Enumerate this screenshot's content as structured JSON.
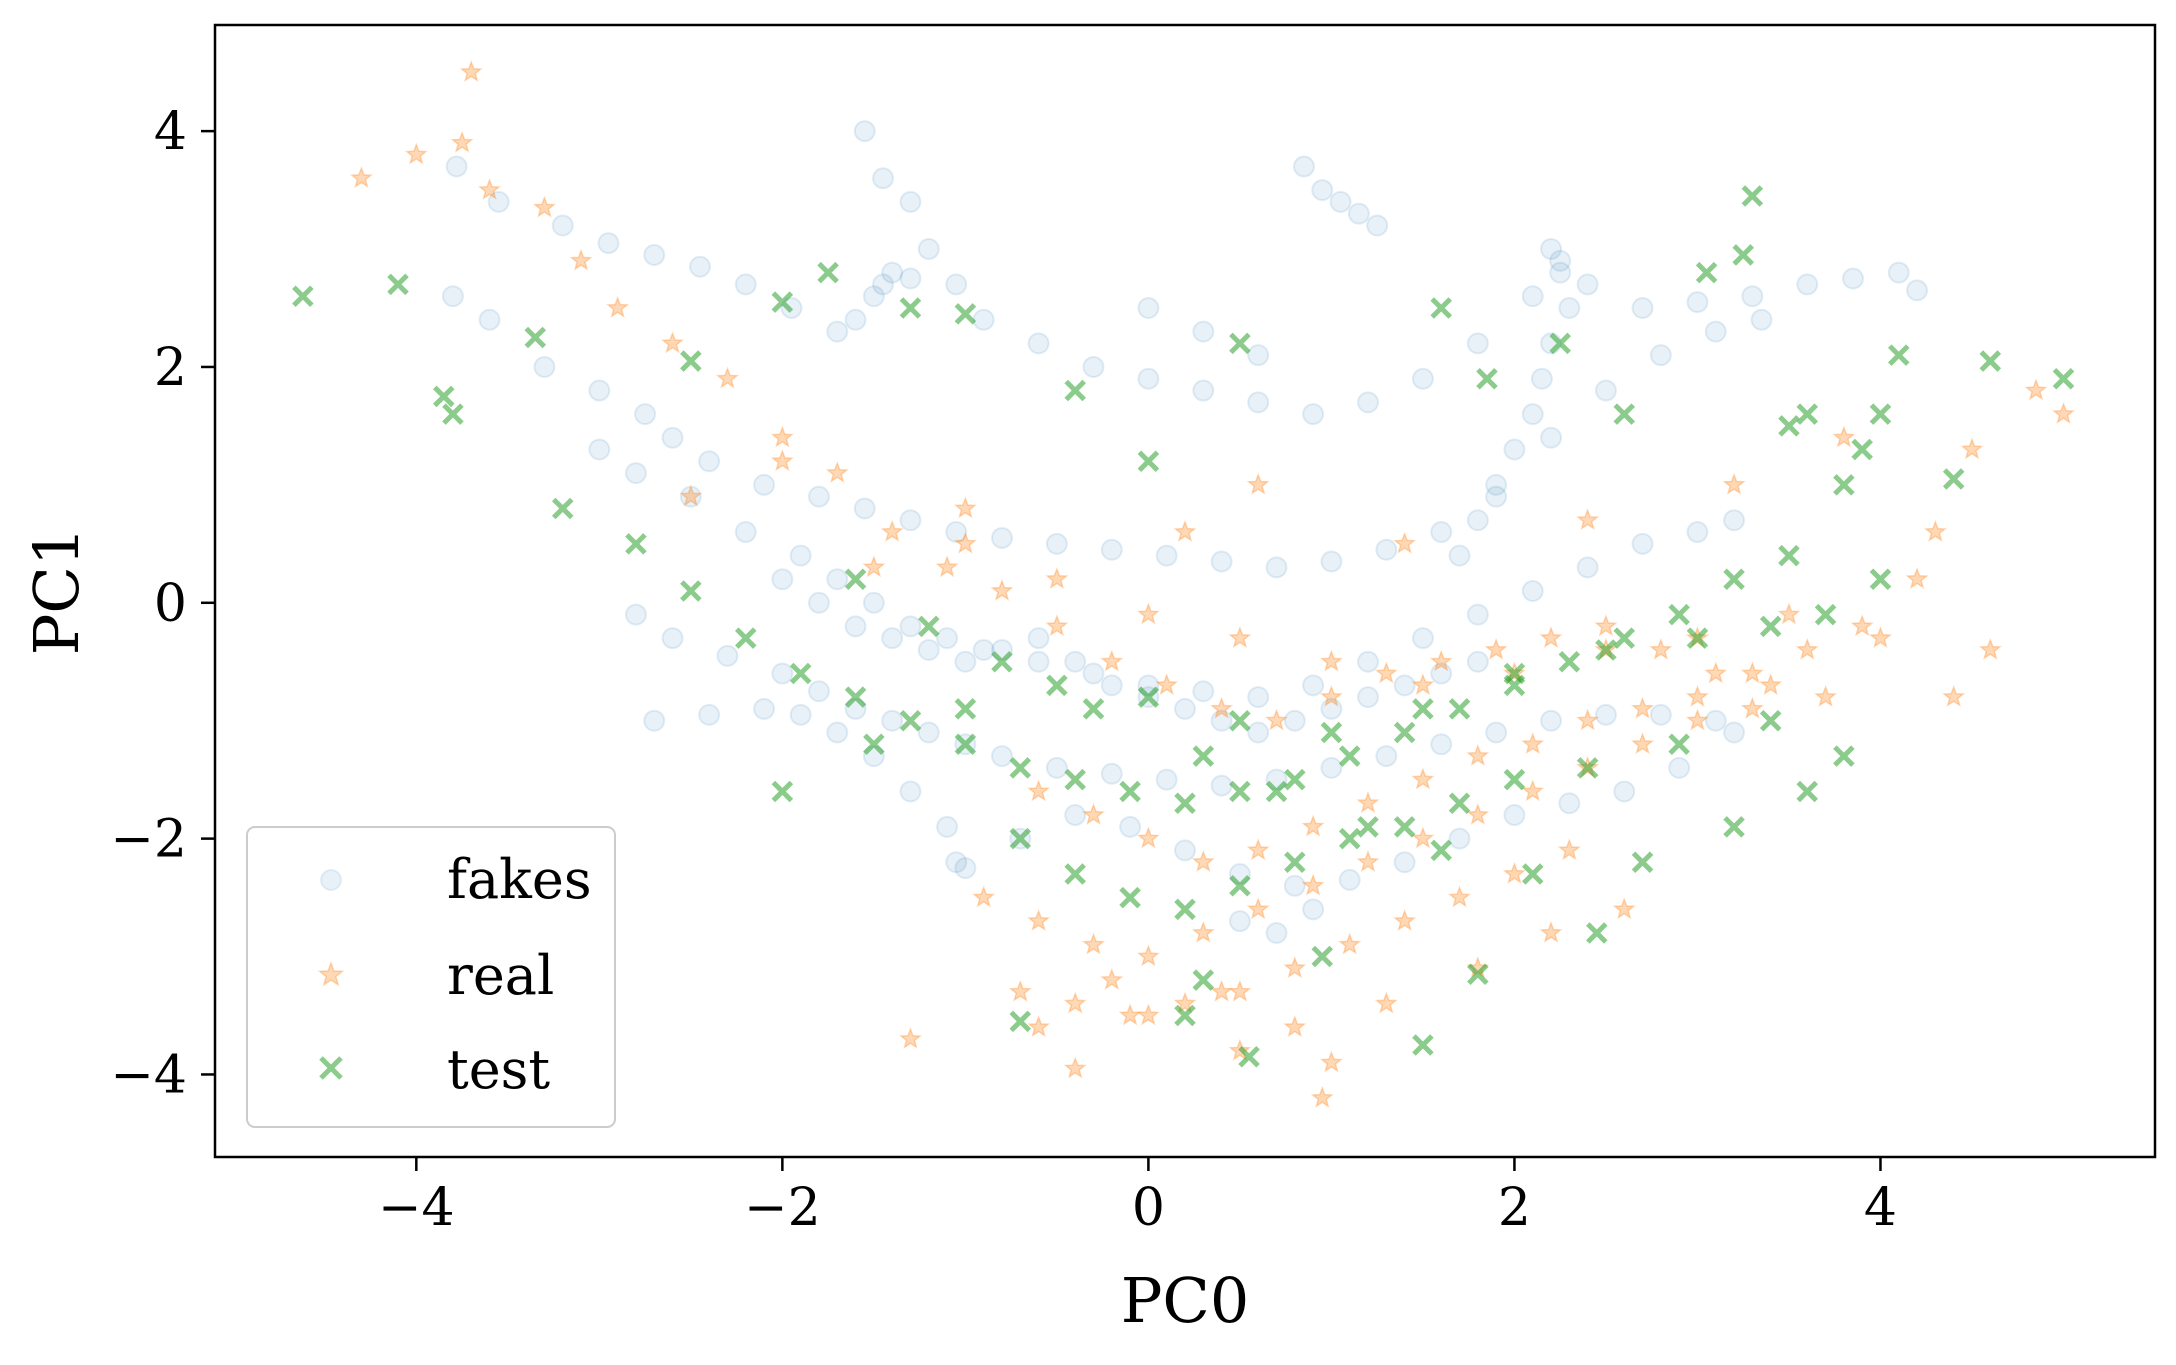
{
  "chart_data": {
    "type": "scatter",
    "title": "",
    "xlabel": "PC0",
    "ylabel": "PC1",
    "xlim": [
      -5.1,
      5.5
    ],
    "ylim": [
      -4.7,
      4.9
    ],
    "x_ticks": [
      -4,
      -2,
      0,
      2,
      4
    ],
    "y_ticks": [
      -4,
      -2,
      0,
      2,
      4
    ],
    "x_tick_labels": [
      "−4",
      "−2",
      "0",
      "2",
      "4"
    ],
    "y_tick_labels": [
      "−4",
      "−2",
      "0",
      "2",
      "4"
    ],
    "grid": false,
    "legend": {
      "position": "lower-left",
      "entries": [
        "fakes",
        "real",
        "test"
      ]
    },
    "colors": {
      "fakes": "#1f77b4",
      "real": "#ff7f0e",
      "test": "#2ca02c"
    },
    "series": [
      {
        "name": "fakes",
        "marker": "circle",
        "x": [
          -3.78,
          -3.55,
          -3.2,
          -2.95,
          -2.7,
          -2.45,
          -2.2,
          -1.95,
          -1.7,
          -1.55,
          -1.45,
          -1.3,
          -1.2,
          -1.05,
          -0.9,
          -0.6,
          -0.3,
          0.0,
          0.3,
          0.6,
          0.9,
          1.2,
          1.5,
          1.8,
          2.1,
          2.25,
          2.4,
          2.7,
          3.0,
          3.3,
          3.6,
          3.85,
          4.1,
          4.2,
          -3.8,
          -3.6,
          -3.3,
          -3.0,
          -2.75,
          -2.6,
          -2.4,
          -2.1,
          -1.8,
          -1.55,
          -1.3,
          -1.05,
          -0.8,
          -0.5,
          -0.2,
          0.1,
          0.4,
          0.7,
          1.0,
          1.3,
          1.6,
          1.9,
          2.2,
          2.5,
          2.8,
          3.1,
          3.35,
          -3.0,
          -2.8,
          -2.5,
          -2.2,
          -1.9,
          -1.7,
          -1.5,
          -1.3,
          -1.1,
          -0.9,
          -0.6,
          -0.3,
          0.0,
          0.3,
          0.6,
          0.9,
          1.2,
          1.5,
          1.8,
          2.1,
          2.4,
          2.7,
          3.0,
          3.2,
          -2.8,
          -2.6,
          -2.3,
          -2.0,
          -1.8,
          -1.6,
          -1.4,
          -1.2,
          -1.0,
          -0.8,
          -0.5,
          -0.2,
          0.1,
          0.4,
          0.7,
          1.0,
          1.3,
          1.6,
          1.9,
          2.2,
          2.5,
          2.8,
          3.1,
          -2.7,
          -2.4,
          -2.1,
          -1.9,
          -1.7,
          -1.5,
          -1.3,
          -1.1,
          -1.05,
          -1.0,
          -0.7,
          -0.4,
          -0.1,
          0.2,
          0.5,
          0.8,
          1.1,
          1.4,
          1.7,
          2.0,
          2.3,
          2.6,
          2.9,
          3.2,
          -1.6,
          -1.5,
          -1.45,
          -1.4,
          -1.3,
          0.85,
          0.95,
          1.05,
          1.15,
          1.25,
          0.0,
          0.3,
          0.6,
          2.2,
          2.25,
          2.3,
          2.2,
          2.15,
          2.1,
          2.0,
          1.9,
          1.8,
          1.7,
          -2.0,
          -1.8,
          -1.6,
          -1.4,
          -1.2,
          -1.0,
          -0.8,
          -0.6,
          -0.4,
          -0.2,
          0.0,
          0.2,
          0.4,
          0.6,
          0.8,
          1.0,
          1.2,
          1.4,
          1.6,
          1.8,
          0.5,
          0.7,
          0.9
        ],
        "y": [
          3.7,
          3.4,
          3.2,
          3.05,
          2.95,
          2.85,
          2.7,
          2.5,
          2.3,
          4.0,
          3.6,
          3.4,
          3.0,
          2.7,
          2.4,
          2.2,
          2.0,
          1.9,
          1.8,
          1.7,
          1.6,
          1.7,
          1.9,
          2.2,
          2.6,
          2.9,
          2.7,
          2.5,
          2.55,
          2.6,
          2.7,
          2.75,
          2.8,
          2.65,
          2.6,
          2.4,
          2.0,
          1.8,
          1.6,
          1.4,
          1.2,
          1.0,
          0.9,
          0.8,
          0.7,
          0.6,
          0.55,
          0.5,
          0.45,
          0.4,
          0.35,
          0.3,
          0.35,
          0.45,
          0.6,
          0.9,
          1.4,
          1.8,
          2.1,
          2.3,
          2.4,
          1.3,
          1.1,
          0.9,
          0.6,
          0.4,
          0.2,
          0.0,
          -0.2,
          -0.3,
          -0.4,
          -0.5,
          -0.6,
          -0.7,
          -0.75,
          -0.8,
          -0.7,
          -0.5,
          -0.3,
          -0.1,
          0.1,
          0.3,
          0.5,
          0.6,
          0.7,
          -0.1,
          -0.3,
          -0.45,
          -0.6,
          -0.75,
          -0.9,
          -1.0,
          -1.1,
          -1.2,
          -1.3,
          -1.4,
          -1.45,
          -1.5,
          -1.55,
          -1.5,
          -1.4,
          -1.3,
          -1.2,
          -1.1,
          -1.0,
          -0.95,
          -0.95,
          -1.0,
          -1.0,
          -0.95,
          -0.9,
          -0.95,
          -1.1,
          -1.3,
          -1.6,
          -1.9,
          -2.2,
          -2.25,
          -2.0,
          -1.8,
          -1.9,
          -2.1,
          -2.3,
          -2.4,
          -2.35,
          -2.2,
          -2.0,
          -1.8,
          -1.7,
          -1.6,
          -1.4,
          -1.1,
          2.4,
          2.6,
          2.7,
          2.8,
          2.75,
          3.7,
          3.5,
          3.4,
          3.3,
          3.2,
          2.5,
          2.3,
          2.1,
          3.0,
          2.8,
          2.5,
          2.2,
          1.9,
          1.6,
          1.3,
          1.0,
          0.7,
          0.4,
          0.2,
          0.0,
          -0.2,
          -0.3,
          -0.4,
          -0.5,
          -0.4,
          -0.3,
          -0.5,
          -0.7,
          -0.8,
          -0.9,
          -1.0,
          -1.1,
          -1.0,
          -0.9,
          -0.8,
          -0.7,
          -0.6,
          -0.5,
          -2.7,
          -2.8,
          -2.6
        ]
      },
      {
        "name": "real",
        "marker": "star",
        "x": [
          -3.7,
          -4.3,
          -4.0,
          -3.75,
          -3.6,
          -3.3,
          -3.1,
          -2.9,
          -2.6,
          -2.3,
          -2.0,
          -1.7,
          -1.4,
          -1.1,
          -0.8,
          -0.5,
          -0.2,
          0.1,
          0.4,
          0.7,
          1.0,
          1.3,
          1.6,
          1.9,
          2.2,
          2.5,
          2.8,
          3.1,
          3.4,
          3.7,
          4.0,
          4.3,
          4.5,
          5.0,
          4.85,
          -0.6,
          -0.3,
          0.0,
          0.3,
          0.6,
          0.9,
          1.2,
          1.5,
          1.8,
          2.1,
          2.4,
          2.7,
          3.0,
          3.3,
          3.6,
          3.9,
          4.2,
          -0.9,
          -0.6,
          -0.3,
          0.0,
          0.3,
          0.6,
          0.9,
          1.2,
          1.5,
          1.8,
          2.1,
          2.4,
          2.7,
          3.0,
          3.3,
          -0.7,
          -0.4,
          -0.1,
          0.2,
          0.5,
          0.8,
          1.1,
          1.4,
          1.7,
          2.0,
          2.3,
          -1.3,
          -0.6,
          -0.4,
          0.0,
          0.5,
          0.95,
          1.0,
          -0.2,
          0.4,
          0.8,
          1.3,
          1.8,
          2.2,
          2.6,
          -1.5,
          -1.0,
          -0.5,
          0.0,
          0.5,
          1.0,
          1.5,
          2.0,
          2.5,
          3.0,
          3.5,
          -2.5,
          -2.0,
          -1.0,
          0.2,
          0.6,
          1.4,
          2.4,
          3.2,
          3.8,
          4.4,
          4.6
        ],
        "y": [
          4.5,
          3.6,
          3.8,
          3.9,
          3.5,
          3.35,
          2.9,
          2.5,
          2.2,
          1.9,
          1.4,
          1.1,
          0.6,
          0.3,
          0.1,
          -0.2,
          -0.5,
          -0.7,
          -0.9,
          -1.0,
          -0.8,
          -0.6,
          -0.5,
          -0.4,
          -0.3,
          -0.2,
          -0.4,
          -0.6,
          -0.7,
          -0.8,
          -0.3,
          0.6,
          1.3,
          1.6,
          1.8,
          -1.6,
          -1.8,
          -2.0,
          -2.2,
          -2.1,
          -1.9,
          -1.7,
          -1.5,
          -1.3,
          -1.2,
          -1.0,
          -0.9,
          -0.8,
          -0.6,
          -0.4,
          -0.2,
          0.2,
          -2.5,
          -2.7,
          -2.9,
          -3.0,
          -2.8,
          -2.6,
          -2.4,
          -2.2,
          -2.0,
          -1.8,
          -1.6,
          -1.4,
          -1.2,
          -1.0,
          -0.9,
          -3.3,
          -3.4,
          -3.5,
          -3.4,
          -3.3,
          -3.1,
          -2.9,
          -2.7,
          -2.5,
          -2.3,
          -2.1,
          -3.7,
          -3.6,
          -3.95,
          -3.5,
          -3.8,
          -4.2,
          -3.9,
          -3.2,
          -3.3,
          -3.6,
          -3.4,
          -3.1,
          -2.8,
          -2.6,
          0.3,
          0.5,
          0.2,
          -0.1,
          -0.3,
          -0.5,
          -0.7,
          -0.6,
          -0.4,
          -0.3,
          -0.1,
          0.9,
          1.2,
          0.8,
          0.6,
          1.0,
          0.5,
          0.7,
          1.0,
          1.4,
          -0.8,
          -0.4
        ]
      },
      {
        "name": "test",
        "marker": "x",
        "x": [
          -4.62,
          -4.1,
          -3.85,
          -3.8,
          -3.35,
          -2.5,
          -2.0,
          -1.75,
          -1.3,
          -1.0,
          -0.4,
          0.5,
          0.0,
          1.6,
          1.85,
          2.25,
          2.6,
          3.05,
          3.25,
          3.3,
          3.5,
          3.6,
          3.9,
          4.1,
          4.6,
          5.0,
          -3.2,
          -2.8,
          -2.5,
          -2.2,
          -1.9,
          -1.6,
          -1.3,
          -1.0,
          -0.7,
          -0.4,
          -0.1,
          0.2,
          0.5,
          0.8,
          1.1,
          1.4,
          1.7,
          2.0,
          2.3,
          2.6,
          2.9,
          3.2,
          3.5,
          3.8,
          4.0,
          4.4,
          -2.0,
          -1.5,
          -1.0,
          -0.5,
          0.0,
          0.5,
          1.0,
          1.5,
          2.0,
          2.5,
          3.0,
          3.4,
          3.7,
          -0.7,
          -0.4,
          -0.1,
          0.2,
          0.5,
          0.8,
          1.1,
          1.4,
          1.7,
          2.0,
          2.4,
          2.9,
          3.4,
          -0.7,
          0.2,
          0.3,
          0.55,
          0.95,
          1.5,
          1.8,
          2.45,
          -1.6,
          -1.2,
          -0.8,
          -0.3,
          0.3,
          0.7,
          1.2,
          1.6,
          2.1,
          2.7,
          3.2,
          3.6,
          3.8,
          4.0
        ],
        "y": [
          2.6,
          2.7,
          1.75,
          1.6,
          2.25,
          2.05,
          2.55,
          2.8,
          2.5,
          2.45,
          1.8,
          2.2,
          1.2,
          2.5,
          1.9,
          2.2,
          1.6,
          2.8,
          2.95,
          3.45,
          1.5,
          1.6,
          1.3,
          2.1,
          2.05,
          1.9,
          0.8,
          0.5,
          0.1,
          -0.3,
          -0.6,
          -0.8,
          -1.0,
          -1.2,
          -1.4,
          -1.5,
          -1.6,
          -1.7,
          -1.6,
          -1.5,
          -1.3,
          -1.1,
          -0.9,
          -0.7,
          -0.5,
          -0.3,
          -0.1,
          0.2,
          0.4,
          1.0,
          1.6,
          1.05,
          -1.6,
          -1.2,
          -0.9,
          -0.7,
          -0.8,
          -1.0,
          -1.1,
          -0.9,
          -0.6,
          -0.4,
          -0.3,
          -0.2,
          -0.1,
          -2.0,
          -2.3,
          -2.5,
          -2.6,
          -2.4,
          -2.2,
          -2.0,
          -1.9,
          -1.7,
          -1.5,
          -1.4,
          -1.2,
          -1.0,
          -3.55,
          -3.5,
          -3.2,
          -3.85,
          -3.0,
          -3.75,
          -3.15,
          -2.8,
          0.2,
          -0.2,
          -0.5,
          -0.9,
          -1.3,
          -1.6,
          -1.9,
          -2.1,
          -2.3,
          -2.2,
          -1.9,
          -1.6,
          -1.3,
          0.2
        ]
      }
    ]
  }
}
